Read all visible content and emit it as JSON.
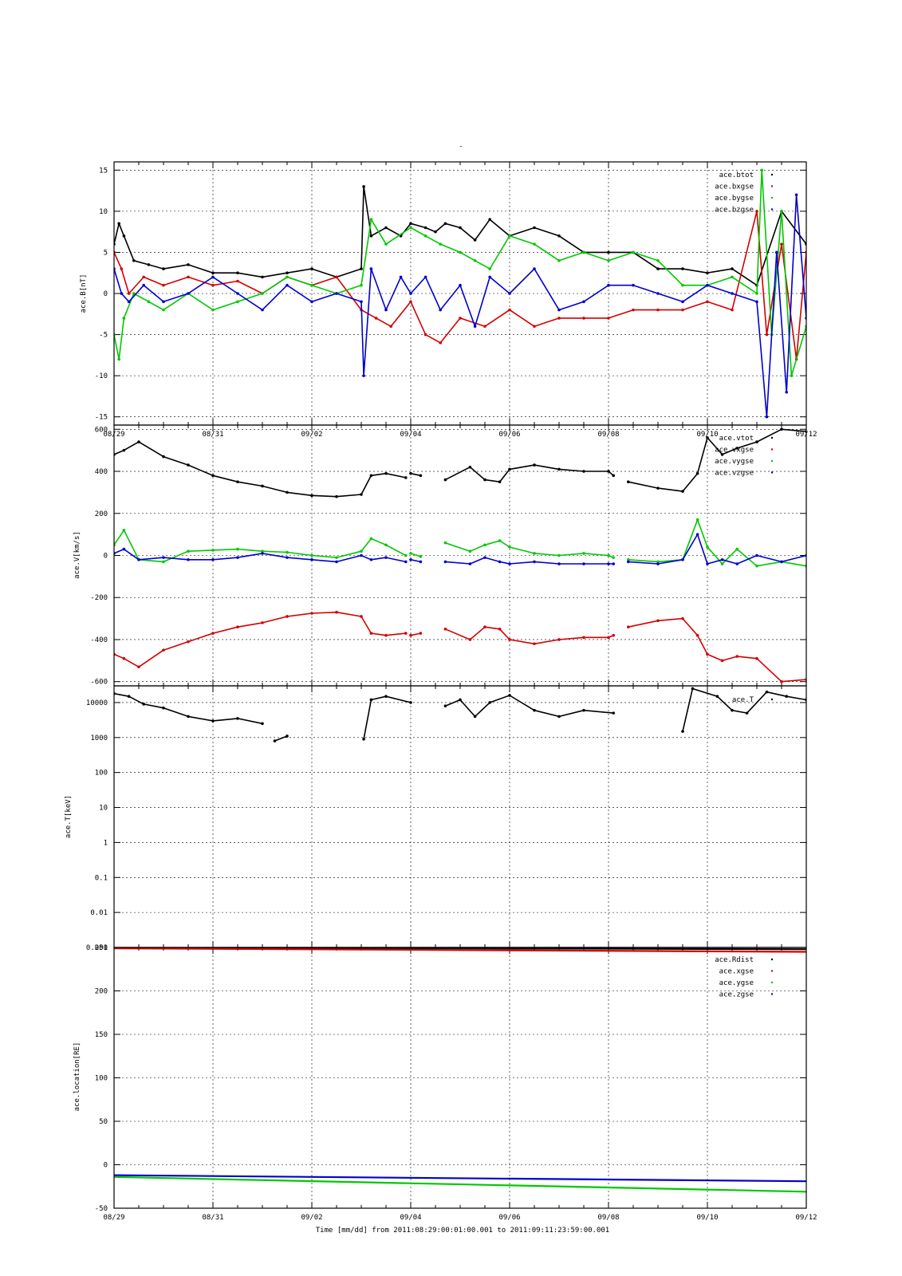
{
  "page": {
    "top_mark": "-",
    "footer": "Time [mm/dd]  from 2011:08:29:00:01:00.001  to  2011:09:11:23:59:00.001"
  },
  "colors": {
    "black": "#000000",
    "red": "#d40000",
    "green": "#00c800",
    "blue": "#0000d0"
  },
  "chart_data": [
    {
      "type": "scatter",
      "ylabel": "ace.B[nT]",
      "ylim": [
        -16,
        16
      ],
      "yticks": [
        15,
        10,
        5,
        0,
        -5,
        -10,
        -15
      ],
      "ytick_labels": [
        "15",
        "10",
        "5",
        "0",
        "-5",
        "-10",
        "-15"
      ],
      "xlim": [
        0,
        14
      ],
      "xticks": [
        0,
        2,
        4,
        6,
        8,
        10,
        12,
        14
      ],
      "xtick_labels": [
        "08/29",
        "08/31",
        "09/02",
        "09/04",
        "09/06",
        "09/08",
        "09/10",
        "09/12"
      ],
      "grid": true,
      "legend_position": "top-right",
      "series": [
        {
          "name": "ace.btot",
          "color": "#000000",
          "x": [
            0,
            0.1,
            0.2,
            0.4,
            0.7,
            1,
            1.5,
            2,
            2.5,
            3,
            3.5,
            4,
            4.5,
            5,
            5.05,
            5.2,
            5.5,
            5.8,
            6,
            6.3,
            6.5,
            6.7,
            7,
            7.3,
            7.6,
            8,
            8.5,
            9,
            9.5,
            10,
            10.5,
            11,
            11.5,
            12,
            12.5,
            13,
            13.5,
            14
          ],
          "y": [
            6,
            8.5,
            7,
            4,
            3.5,
            3,
            3.5,
            2.5,
            2.5,
            2,
            2.5,
            3,
            2,
            3,
            13,
            7,
            8,
            7,
            8.5,
            8,
            7.5,
            8.5,
            8,
            6.5,
            9,
            7,
            8,
            7,
            5,
            5,
            5,
            3,
            3,
            2.5,
            3,
            1,
            10,
            6
          ]
        },
        {
          "name": "ace.bxgse",
          "color": "#d40000",
          "x": [
            0,
            0.15,
            0.3,
            0.6,
            1,
            1.5,
            2,
            2.5,
            3,
            3.5,
            4,
            4.5,
            5,
            5.3,
            5.6,
            6,
            6.3,
            6.6,
            7,
            7.5,
            8,
            8.5,
            9,
            9.5,
            10,
            10.5,
            11,
            11.5,
            12,
            12.5,
            13,
            13.2,
            13.5,
            13.8,
            14
          ],
          "y": [
            5,
            3,
            0,
            2,
            1,
            2,
            1,
            1.5,
            0,
            2,
            1,
            2,
            -2,
            -3,
            -4,
            -1,
            -5,
            -6,
            -3,
            -4,
            -2,
            -4,
            -3,
            -3,
            -3,
            -2,
            -2,
            -2,
            -1,
            -2,
            10,
            -5,
            6,
            -8,
            5
          ]
        },
        {
          "name": "ace.bygse",
          "color": "#00c800",
          "x": [
            0,
            0.1,
            0.2,
            0.4,
            0.7,
            1,
            1.5,
            2,
            2.5,
            3,
            3.5,
            4,
            4.5,
            5,
            5.2,
            5.5,
            6,
            6.3,
            6.6,
            7,
            7.3,
            7.6,
            8,
            8.5,
            9,
            9.5,
            10,
            10.5,
            11,
            11.5,
            12,
            12.5,
            13,
            13.1,
            13.3,
            13.5,
            13.7,
            14
          ],
          "y": [
            -5,
            -8,
            -3,
            0,
            -1,
            -2,
            0,
            -2,
            -1,
            0,
            2,
            1,
            0,
            1,
            9,
            6,
            8,
            7,
            6,
            5,
            4,
            3,
            7,
            6,
            4,
            5,
            4,
            5,
            4,
            1,
            1,
            2,
            0,
            15,
            -5,
            10,
            -10,
            -4
          ]
        },
        {
          "name": "ace.bzgse",
          "color": "#0000d0",
          "x": [
            0,
            0.15,
            0.3,
            0.6,
            1,
            1.5,
            2,
            2.5,
            3,
            3.5,
            4,
            4.5,
            5,
            5.05,
            5.2,
            5.5,
            5.8,
            6,
            6.3,
            6.6,
            7,
            7.3,
            7.6,
            8,
            8.5,
            9,
            9.5,
            10,
            10.5,
            11,
            11.5,
            12,
            12.5,
            13,
            13.2,
            13.4,
            13.6,
            13.8,
            14
          ],
          "y": [
            3,
            0,
            -1,
            1,
            -1,
            0,
            2,
            0,
            -2,
            1,
            -1,
            0,
            -1,
            -10,
            3,
            -2,
            2,
            0,
            2,
            -2,
            1,
            -4,
            2,
            0,
            3,
            -2,
            -1,
            1,
            1,
            0,
            -1,
            1,
            0,
            -1,
            -15,
            5,
            -12,
            12,
            -3
          ]
        }
      ]
    },
    {
      "type": "scatter",
      "ylabel": "ace.V[km/s]",
      "ylim": [
        -620,
        620
      ],
      "yticks": [
        600,
        400,
        200,
        0,
        -200,
        -400,
        -600
      ],
      "ytick_labels": [
        "600",
        "400",
        "200",
        "0",
        "-200",
        "-400",
        "-600"
      ],
      "xlim": [
        0,
        14
      ],
      "xticks": [
        0,
        2,
        4,
        6,
        8,
        10,
        12,
        14
      ],
      "xtick_labels": [
        "",
        "",
        "",
        "",
        "",
        "",
        "",
        ""
      ],
      "grid": true,
      "legend_position": "top-right",
      "series": [
        {
          "name": "ace.vtot",
          "color": "#000000",
          "segments": [
            {
              "x": [
                0,
                0.2,
                0.5,
                1,
                1.5,
                2,
                2.5,
                3,
                3.5,
                4,
                4.5,
                5,
                5.2,
                5.5,
                5.9
              ],
              "y": [
                480,
                500,
                540,
                470,
                430,
                380,
                350,
                330,
                300,
                285,
                280,
                290,
                380,
                390,
                370
              ]
            },
            {
              "x": [
                6,
                6.2
              ],
              "y": [
                390,
                380
              ]
            },
            {
              "x": [
                6.7,
                7.2,
                7.5,
                7.8,
                8,
                8.5,
                9,
                9.5,
                10,
                10.1
              ],
              "y": [
                360,
                420,
                360,
                350,
                410,
                430,
                410,
                400,
                400,
                380
              ]
            },
            {
              "x": [
                10.4,
                11,
                11.5,
                11.8,
                12,
                12.3,
                12.6,
                13,
                13.5,
                14
              ],
              "y": [
                350,
                320,
                305,
                390,
                560,
                480,
                510,
                540,
                600,
                590
              ]
            }
          ]
        },
        {
          "name": "ace.vxgse",
          "color": "#d40000",
          "segments": [
            {
              "x": [
                0,
                0.2,
                0.5,
                1,
                1.5,
                2,
                2.5,
                3,
                3.5,
                4,
                4.5,
                5,
                5.2,
                5.5,
                5.9
              ],
              "y": [
                -470,
                -490,
                -530,
                -450,
                -410,
                -370,
                -340,
                -320,
                -290,
                -275,
                -270,
                -290,
                -370,
                -380,
                -370
              ]
            },
            {
              "x": [
                6,
                6.2
              ],
              "y": [
                -380,
                -370
              ]
            },
            {
              "x": [
                6.7,
                7.2,
                7.5,
                7.8,
                8,
                8.5,
                9,
                9.5,
                10,
                10.1
              ],
              "y": [
                -350,
                -400,
                -340,
                -350,
                -400,
                -420,
                -400,
                -390,
                -390,
                -380
              ]
            },
            {
              "x": [
                10.4,
                11,
                11.5,
                11.8,
                12,
                12.3,
                12.6,
                13,
                13.5,
                14
              ],
              "y": [
                -340,
                -310,
                -300,
                -380,
                -470,
                -500,
                -480,
                -490,
                -600,
                -590
              ]
            }
          ]
        },
        {
          "name": "ace.vygse",
          "color": "#00c800",
          "segments": [
            {
              "x": [
                0,
                0.2,
                0.5,
                1,
                1.5,
                2,
                2.5,
                3,
                3.5,
                4,
                4.5,
                5,
                5.2,
                5.5,
                5.9
              ],
              "y": [
                50,
                120,
                -20,
                -30,
                20,
                25,
                30,
                20,
                15,
                0,
                -10,
                20,
                80,
                50,
                0
              ]
            },
            {
              "x": [
                6,
                6.2
              ],
              "y": [
                10,
                -5
              ]
            },
            {
              "x": [
                6.7,
                7.2,
                7.5,
                7.8,
                8,
                8.5,
                9,
                9.5,
                10,
                10.1
              ],
              "y": [
                60,
                20,
                50,
                70,
                40,
                10,
                0,
                10,
                0,
                -10
              ]
            },
            {
              "x": [
                10.4,
                11,
                11.5,
                11.8,
                12,
                12.3,
                12.6,
                13,
                13.5,
                14
              ],
              "y": [
                -20,
                -30,
                -20,
                170,
                40,
                -40,
                30,
                -50,
                -30,
                -50
              ]
            }
          ]
        },
        {
          "name": "ace.vzgse",
          "color": "#0000d0",
          "segments": [
            {
              "x": [
                0,
                0.2,
                0.5,
                1,
                1.5,
                2,
                2.5,
                3,
                3.5,
                4,
                4.5,
                5,
                5.2,
                5.5,
                5.9
              ],
              "y": [
                10,
                30,
                -20,
                -10,
                -20,
                -20,
                -10,
                10,
                -10,
                -20,
                -30,
                0,
                -20,
                -10,
                -30
              ]
            },
            {
              "x": [
                6,
                6.2
              ],
              "y": [
                -20,
                -30
              ]
            },
            {
              "x": [
                6.7,
                7.2,
                7.5,
                7.8,
                8,
                8.5,
                9,
                9.5,
                10,
                10.1
              ],
              "y": [
                -30,
                -40,
                -10,
                -30,
                -40,
                -30,
                -40,
                -40,
                -40,
                -40
              ]
            },
            {
              "x": [
                10.4,
                11,
                11.5,
                11.8,
                12,
                12.3,
                12.6,
                13,
                13.5,
                14
              ],
              "y": [
                -30,
                -40,
                -20,
                100,
                -40,
                -20,
                -40,
                0,
                -30,
                0
              ]
            }
          ]
        }
      ]
    },
    {
      "type": "scatter",
      "ylabel": "ace.T[keV]",
      "yscale": "log",
      "ylim": [
        0.001,
        30000
      ],
      "yticks": [
        10000,
        1000,
        100,
        10,
        1,
        0.1,
        0.01,
        0.001
      ],
      "ytick_labels": [
        "10000",
        "1000",
        "100",
        "10",
        "1",
        "0.1",
        "0.01",
        "0.001"
      ],
      "xlim": [
        0,
        14
      ],
      "xticks": [
        0,
        2,
        4,
        6,
        8,
        10,
        12,
        14
      ],
      "xtick_labels": [
        "",
        "",
        "",
        "",
        "",
        "",
        "",
        ""
      ],
      "grid": true,
      "legend_position": "top-right",
      "series": [
        {
          "name": "ace.T",
          "color": "#000000",
          "segments": [
            {
              "x": [
                0,
                0.3,
                0.6,
                1,
                1.5,
                2,
                2.5,
                3
              ],
              "y": [
                18000,
                15000,
                9000,
                7000,
                4000,
                3000,
                3500,
                2500
              ]
            },
            {
              "x": [
                3.25,
                3.5
              ],
              "y": [
                800,
                1100
              ]
            },
            {
              "x": [
                5.05,
                5.2,
                5.5,
                6
              ],
              "y": [
                900,
                12000,
                15000,
                10000
              ]
            },
            {
              "x": [
                6.7,
                7,
                7.3,
                7.6,
                8,
                8.5,
                9,
                9.5,
                10.1
              ],
              "y": [
                8000,
                12000,
                4000,
                10000,
                16000,
                6000,
                4000,
                6000,
                5000
              ]
            },
            {
              "x": [
                11.5,
                11.7,
                12.2,
                12.5,
                12.8,
                13.2,
                13.6,
                14
              ],
              "y": [
                1500,
                25000,
                15000,
                6000,
                5000,
                20000,
                15000,
                12000
              ]
            }
          ]
        }
      ]
    },
    {
      "type": "line",
      "ylabel": "ace.location[RE]",
      "ylim": [
        -50,
        250
      ],
      "yticks": [
        250,
        200,
        150,
        100,
        50,
        0,
        -50
      ],
      "ytick_labels": [
        "250",
        "200",
        "150",
        "100",
        "50",
        "0",
        "-50"
      ],
      "xlim": [
        0,
        14
      ],
      "xticks": [
        0,
        2,
        4,
        6,
        8,
        10,
        12,
        14
      ],
      "xtick_labels": [
        "08/29",
        "08/31",
        "09/02",
        "09/04",
        "09/06",
        "09/08",
        "09/10",
        "09/12"
      ],
      "grid": true,
      "legend_position": "top-right",
      "series": [
        {
          "name": "ace.Rdist",
          "color": "#000000",
          "x": [
            0,
            14
          ],
          "y": [
            250,
            248
          ]
        },
        {
          "name": "ace.xgse",
          "color": "#d40000",
          "x": [
            0,
            14
          ],
          "y": [
            249,
            245
          ]
        },
        {
          "name": "ace.ygse",
          "color": "#00c800",
          "x": [
            0,
            14
          ],
          "y": [
            -14,
            -31
          ]
        },
        {
          "name": "ace.zgse",
          "color": "#0000d0",
          "x": [
            0,
            14
          ],
          "y": [
            -12,
            -19
          ]
        }
      ]
    }
  ]
}
